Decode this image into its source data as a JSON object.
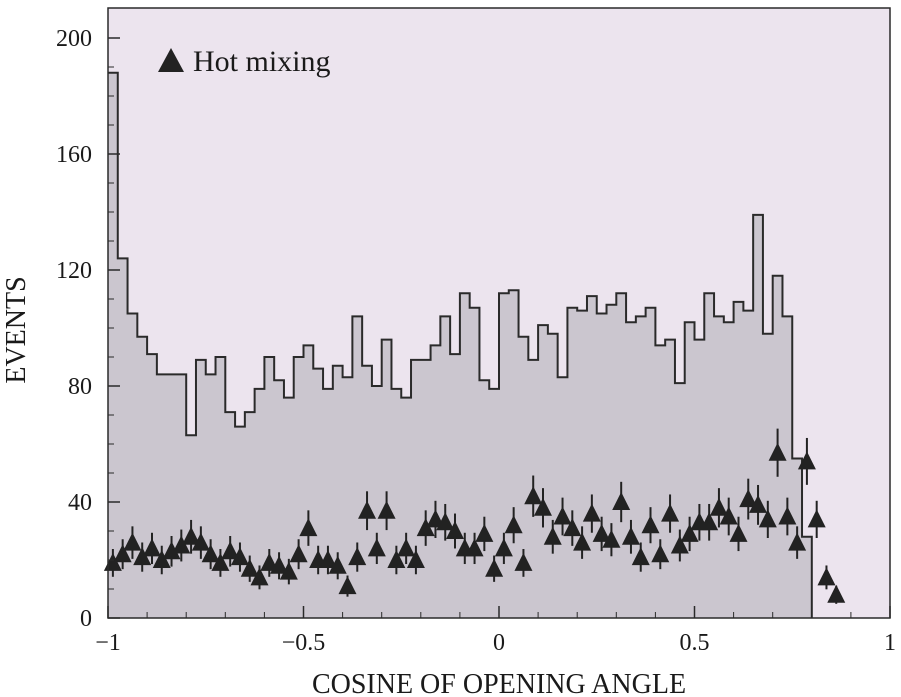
{
  "chart_data": {
    "type": "histogram-with-markers",
    "xlabel": "COSINE OF OPENING ANGLE",
    "ylabel": "EVENTS",
    "xlim": [
      -1,
      1
    ],
    "ylim": [
      0,
      210
    ],
    "x_ticks": [
      -1,
      -0.5,
      0,
      0.5,
      1
    ],
    "x_tick_labels": [
      "−1",
      "−0.5",
      "0",
      "0.5",
      "1"
    ],
    "y_ticks": [
      0,
      40,
      80,
      120,
      160,
      200
    ],
    "y_tick_labels": [
      "0",
      "40",
      "80",
      "120",
      "160",
      "200"
    ],
    "colors": {
      "plot_background": "#ece4ee",
      "histogram_fill": "#cbc6cf",
      "histogram_line": "#2a2a2a",
      "marker": "#222222"
    },
    "histogram": {
      "bin_width": 0.025,
      "bin_start": -1,
      "values": [
        188,
        124,
        105,
        97,
        91,
        84,
        84,
        84,
        63,
        89,
        84,
        90,
        71,
        66,
        71,
        79,
        90,
        82,
        76,
        90,
        94,
        86,
        79,
        87,
        83,
        104,
        87,
        80,
        96,
        79,
        76,
        89,
        89,
        94,
        104,
        91,
        112,
        107,
        82,
        79,
        112,
        113,
        97,
        89,
        101,
        98,
        83,
        107,
        106,
        111,
        105,
        108,
        112,
        102,
        104,
        107,
        94,
        96,
        81,
        102,
        96,
        112,
        104,
        102,
        109,
        106,
        139,
        98,
        118,
        104,
        55,
        28
      ]
    },
    "markers": {
      "series_name": "Hot mixing",
      "marker_shape": "triangle",
      "bin_width": 0.025,
      "x_start": -0.9875,
      "values": [
        19,
        22,
        26,
        21,
        24,
        20,
        23,
        25,
        28,
        26,
        22,
        19,
        23,
        21,
        17,
        14,
        19,
        18,
        16,
        22,
        31,
        20,
        20,
        18,
        11,
        21,
        37,
        24,
        37,
        20,
        24,
        20,
        31,
        34,
        33,
        30,
        24,
        24,
        29,
        17,
        24,
        32,
        19,
        42,
        38,
        28,
        35,
        31,
        26,
        36,
        29,
        27,
        40,
        28,
        21,
        32,
        22,
        36,
        25,
        29,
        33,
        33,
        38,
        35,
        29,
        41,
        39,
        34,
        57,
        35,
        26,
        54,
        34,
        14,
        8
      ]
    }
  },
  "legend": {
    "label": "Hot mixing",
    "marker_icon": "filled-triangle-icon",
    "placement": "top-left"
  }
}
